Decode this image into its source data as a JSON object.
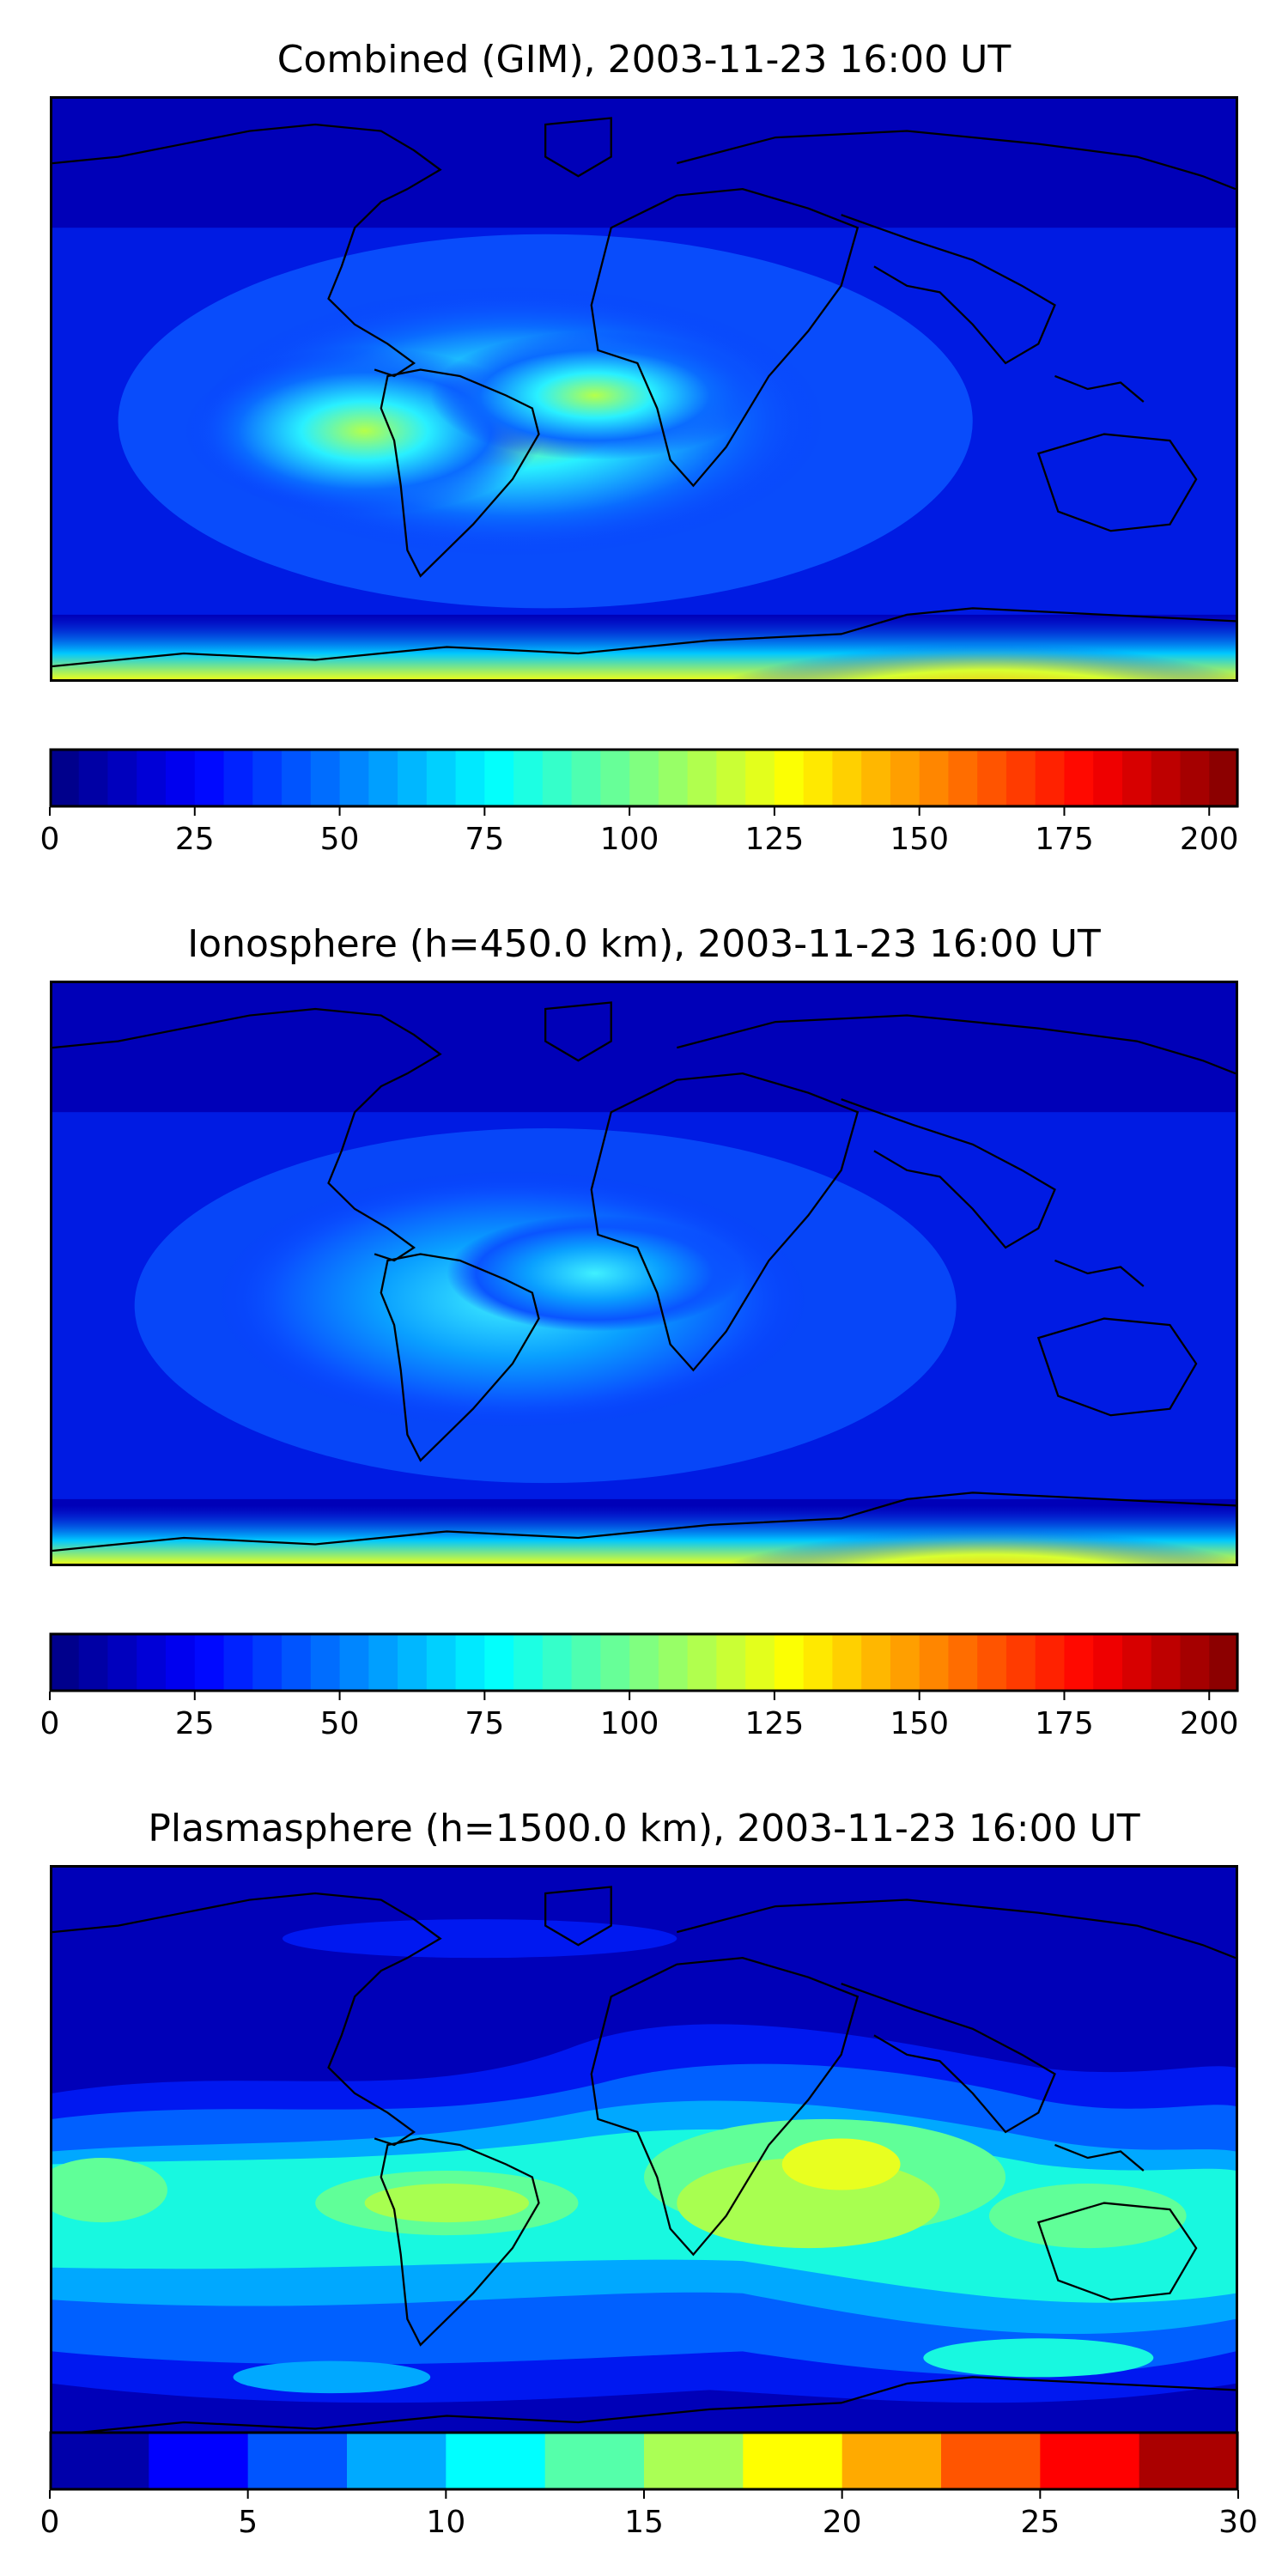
{
  "panels": [
    {
      "title": "Combined (GIM), 2003-11-23 16:00 UT",
      "colorbar": {
        "min": 0,
        "max": 205,
        "step": 5,
        "ticks": [
          "0",
          "25",
          "50",
          "75",
          "100",
          "125",
          "150",
          "175",
          "200"
        ],
        "tick_values": [
          0,
          25,
          50,
          75,
          100,
          125,
          150,
          175,
          200
        ]
      }
    },
    {
      "title": "Ionosphere  (h=450.0 km), 2003-11-23 16:00 UT",
      "colorbar": {
        "min": 0,
        "max": 205,
        "step": 5,
        "ticks": [
          "0",
          "25",
          "50",
          "75",
          "100",
          "125",
          "150",
          "175",
          "200"
        ],
        "tick_values": [
          0,
          25,
          50,
          75,
          100,
          125,
          150,
          175,
          200
        ]
      }
    },
    {
      "title": "Plasmasphere (h=1500.0 km), 2003-11-23 16:00 UT",
      "colorbar": {
        "min": 0,
        "max": 30,
        "step": 2.5,
        "ticks": [
          "0",
          "5",
          "10",
          "15",
          "20",
          "25",
          "30"
        ],
        "tick_values": [
          0,
          5,
          10,
          15,
          20,
          25,
          30
        ]
      }
    }
  ],
  "colormap": "jet",
  "coastline_color": "#000000"
}
